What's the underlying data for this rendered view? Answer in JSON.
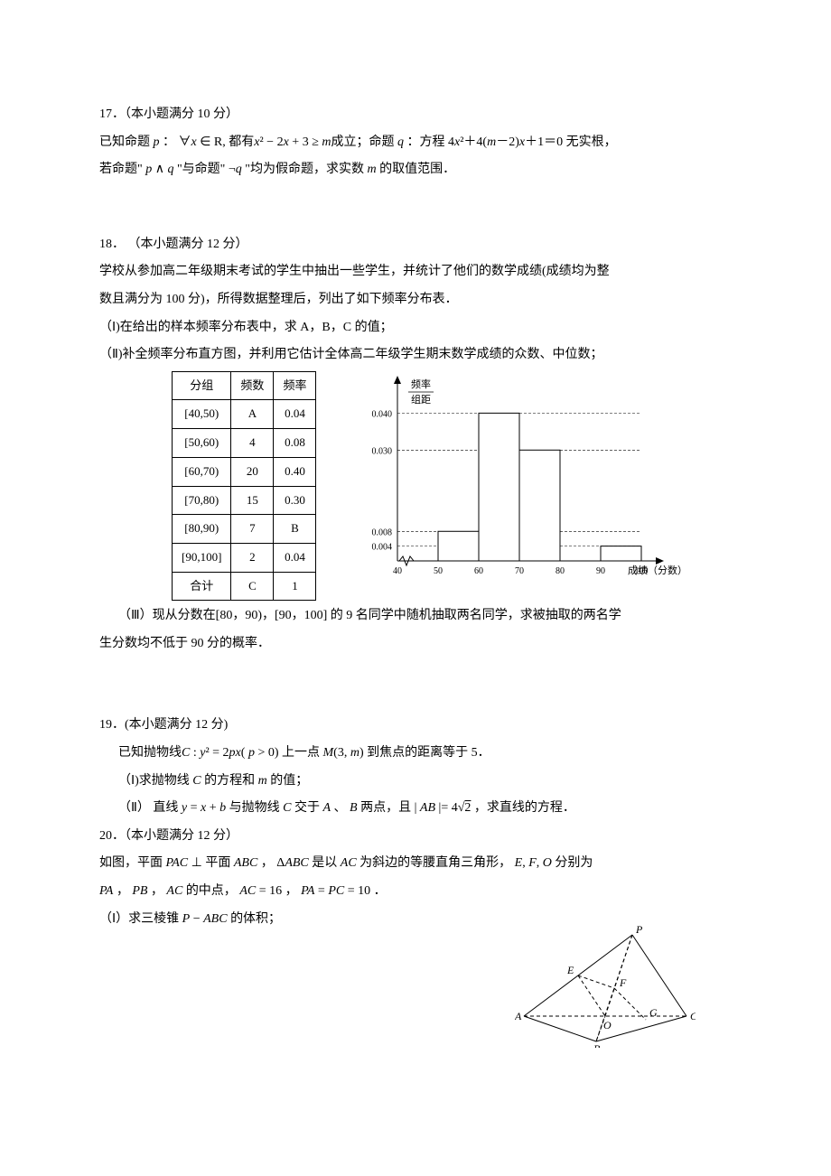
{
  "q17": {
    "heading": "17．（本小题满分 10 分）",
    "line1_a": "已知命题 ",
    "line1_b": "p",
    "line1_c": " ： ∀",
    "line1_d": "x",
    "line1_e": " ∈ R, 都有",
    "line1_f": "x",
    "line1_g": "² − 2",
    "line1_h": "x",
    "line1_i": " + 3 ≥ ",
    "line1_j": "m",
    "line1_k": "成立；命题 ",
    "line1_l": "q",
    "line1_m": " ：方程 4",
    "line1_n": "x",
    "line1_o": "²＋4(",
    "line1_p": "m",
    "line1_q": "－2)",
    "line1_r": "x",
    "line1_s": "＋1＝0 无实根，",
    "line2_a": "若命题\" ",
    "line2_b": "p",
    "line2_c": " ∧ ",
    "line2_d": "q",
    "line2_e": " \"与命题\" ¬",
    "line2_f": "q",
    "line2_g": " \"均为假命题，求实数 ",
    "line2_h": "m",
    "line2_i": " 的取值范围．"
  },
  "q18": {
    "heading": "18． （本小题满分 12 分）",
    "p1": "学校从参加高二年级期末考试的学生中抽出一些学生，并统计了他们的数学成绩(成绩均为整",
    "p2": "数且满分为 100 分)，所得数据整理后，列出了如下频率分布表．",
    "p3": "（Ⅰ)在给出的样本频率分布表中，求 A，B，C 的值；",
    "p4": "（Ⅱ)补全频率分布直方图，并利用它估计全体高二年级学生期末数学成绩的众数、中位数；",
    "table": {
      "cols": [
        "分组",
        "频数",
        "频率"
      ],
      "rows": [
        [
          "[40,50)",
          "A",
          "0.04"
        ],
        [
          "[50,60)",
          "4",
          "0.08"
        ],
        [
          "[60,70)",
          "20",
          "0.40"
        ],
        [
          "[70,80)",
          "15",
          "0.30"
        ],
        [
          "[80,90)",
          "7",
          "B"
        ],
        [
          "[90,100]",
          "2",
          "0.04"
        ],
        [
          "合计",
          "C",
          "1"
        ]
      ]
    },
    "histogram": {
      "ylabel1": "频率",
      "ylabel2": "组距",
      "xlabel": "成绩（分数）",
      "axis_color": "#000000",
      "grid_color": "#000000",
      "bar_color": "#ffffff",
      "bar_border": "#000000",
      "yticks": [
        "0.004",
        "0.008",
        "0.030",
        "0.040"
      ],
      "ytick_pos": [
        0.004,
        0.008,
        0.03,
        0.04
      ],
      "xticks": [
        "40",
        "50",
        "60",
        "70",
        "80",
        "90",
        "100"
      ],
      "bars": [
        {
          "x": 50,
          "h": 0.008
        },
        {
          "x": 60,
          "h": 0.04
        },
        {
          "x": 70,
          "h": 0.03
        },
        {
          "x": 90,
          "h": 0.004
        }
      ],
      "ylim": [
        0,
        0.044
      ]
    },
    "p5": "（Ⅲ）现从分数在[80，90)，[90，100] 的 9 名同学中随机抽取两名同学，求被抽取的两名学",
    "p6": "生分数均不低于 90 分的概率．"
  },
  "q19": {
    "heading": "19．(本小题满分 12 分)",
    "p1_a": "已知抛物线",
    "p1_b": "C",
    "p1_c": " : ",
    "p1_d": "y",
    "p1_e": "² = 2",
    "p1_f": "px",
    "p1_g": "( ",
    "p1_h": "p",
    "p1_i": " > 0) 上一点 ",
    "p1_j": "M",
    "p1_k": "(3, ",
    "p1_l": "m",
    "p1_m": ") 到焦点的距离等于 5．",
    "p2_a": "（Ⅰ)求抛物线 ",
    "p2_b": "C",
    "p2_c": " 的方程和 ",
    "p2_d": "m",
    "p2_e": " 的值；",
    "p3_a": "（Ⅱ） 直线 ",
    "p3_b": "y",
    "p3_c": " = ",
    "p3_d": "x",
    "p3_e": " + ",
    "p3_f": "b",
    "p3_g": " 与抛物线 ",
    "p3_h": "C",
    "p3_i": " 交于 ",
    "p3_j": "A",
    "p3_k": " 、 ",
    "p3_l": "B",
    "p3_m": " 两点，且 | ",
    "p3_n": "AB",
    "p3_o": " |= 4",
    "p3_p": "2",
    "p3_q": " ，求直线的方程．"
  },
  "q20": {
    "heading": "20．（本小题满分 12 分）",
    "p1_a": "如图，平面 ",
    "p1_b": "PAC",
    "p1_c": " ⊥ 平面 ",
    "p1_d": "ABC",
    "p1_e": " ， Δ",
    "p1_f": "ABC",
    "p1_g": " 是以 ",
    "p1_h": "AC",
    "p1_i": " 为斜边的等腰直角三角形， ",
    "p1_j": "E",
    "p1_k": ", ",
    "p1_l": "F",
    "p1_m": ", ",
    "p1_n": "O",
    "p1_o": " 分别为",
    "p2_a": "PA",
    "p2_b": " ， ",
    "p2_c": "PB",
    "p2_d": " ， ",
    "p2_e": "AC",
    "p2_f": " 的中点， ",
    "p2_g": "AC",
    "p2_h": " = 16 ， ",
    "p2_i": "PA",
    "p2_j": " = ",
    "p2_k": "PC",
    "p2_l": " = 10 ．",
    "p3_a": "（Ⅰ）求三棱锥 ",
    "p3_b": "P",
    "p3_c": " − ",
    "p3_d": "ABC",
    "p3_e": " 的体积；",
    "diagram": {
      "labels": {
        "P": "P",
        "E": "E",
        "F": "F",
        "A": "A",
        "O": "O",
        "G": "G",
        "B": "B",
        "C": "C"
      },
      "line_color": "#000000"
    }
  }
}
